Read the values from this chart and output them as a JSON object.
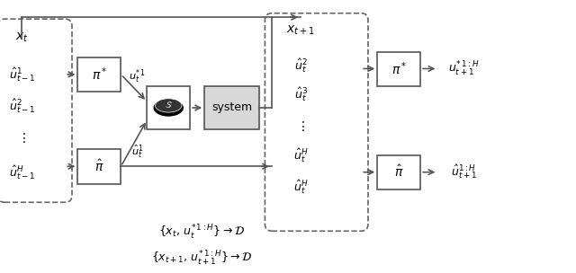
{
  "fig_width": 6.4,
  "fig_height": 3.04,
  "dpi": 100,
  "bg_color": "#ffffff",
  "box_color": "#ffffff",
  "box_edge": "#555555",
  "system_fill": "#dddddd",
  "arrow_color": "#555555",
  "text_color": "#000000",
  "dashed_box_color": "#555555"
}
